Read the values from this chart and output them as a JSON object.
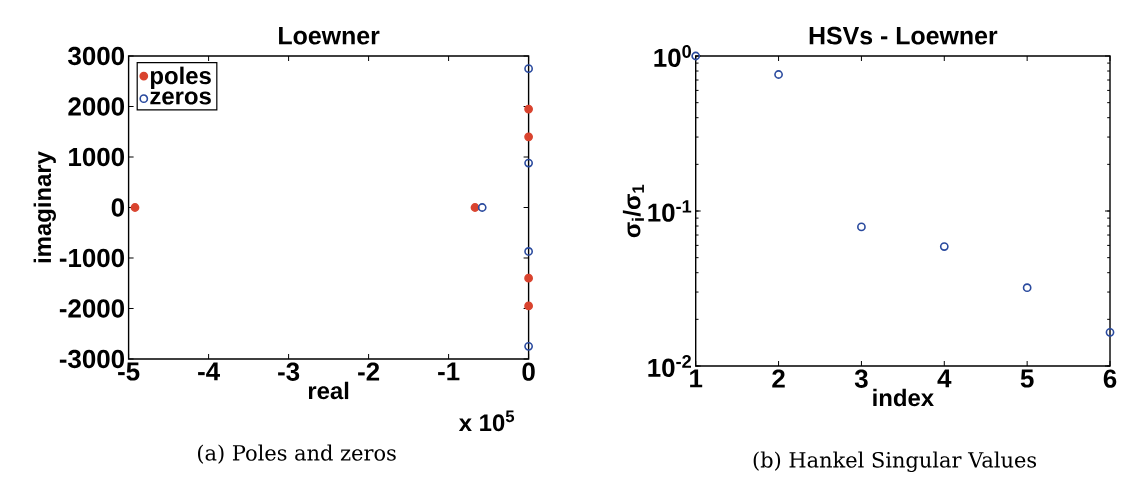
{
  "chart_data": [
    {
      "type": "scatter",
      "title": "Loewner",
      "xlabel": "real",
      "ylabel": "imaginary",
      "xlim": [
        -5,
        0
      ],
      "xticks": [
        -5,
        -4,
        -3,
        -2,
        -1,
        0
      ],
      "ylim": [
        -3000,
        3000
      ],
      "yticks": [
        -3000,
        -2000,
        -1000,
        0,
        1000,
        2000,
        3000
      ],
      "legend": "top left",
      "series": [
        {
          "name": "poles",
          "color": "#d9432e",
          "marker": "circle",
          "x": [
            -4.92,
            -0.67,
            0,
            0,
            0,
            0
          ],
          "values": [
            0,
            0,
            1950,
            1400,
            -1400,
            -1950
          ]
        },
        {
          "name": "zeros",
          "color": "#2a4a9e",
          "marker": "circle",
          "x": [
            -0.58,
            0,
            0,
            0,
            0
          ],
          "values": [
            0,
            2750,
            880,
            -870,
            -2750
          ]
        }
      ],
      "annotations": [
        "x 10$^{5}$",
        "(a) Poles and zeros"
      ]
    },
    {
      "type": "scatter",
      "title": "HSVs - Loewner",
      "xlabel": "index",
      "ylabel": "σ$_{i}$/σ$_{1}$",
      "log": "y",
      "xlim": [
        1,
        6
      ],
      "xticks": [
        1,
        2,
        3,
        4,
        5,
        6
      ],
      "ylim": [
        0.01,
        1
      ],
      "yticks": [
        {
          "value": 0.01,
          "label": "10$^{-2}$"
        },
        {
          "value": 0.1,
          "label": "10$^{-1}$"
        },
        {
          "value": 1,
          "label": "10$^{0}$"
        }
      ],
      "series": [
        {
          "color": "#2a4a9e",
          "marker": "circle",
          "x": [
            1,
            2,
            3,
            4,
            5,
            6
          ],
          "values": [
            1.0,
            0.76,
            0.079,
            0.059,
            0.032,
            0.0165
          ]
        }
      ],
      "annotations": [
        "(b) Hankel Singular Values"
      ]
    }
  ]
}
